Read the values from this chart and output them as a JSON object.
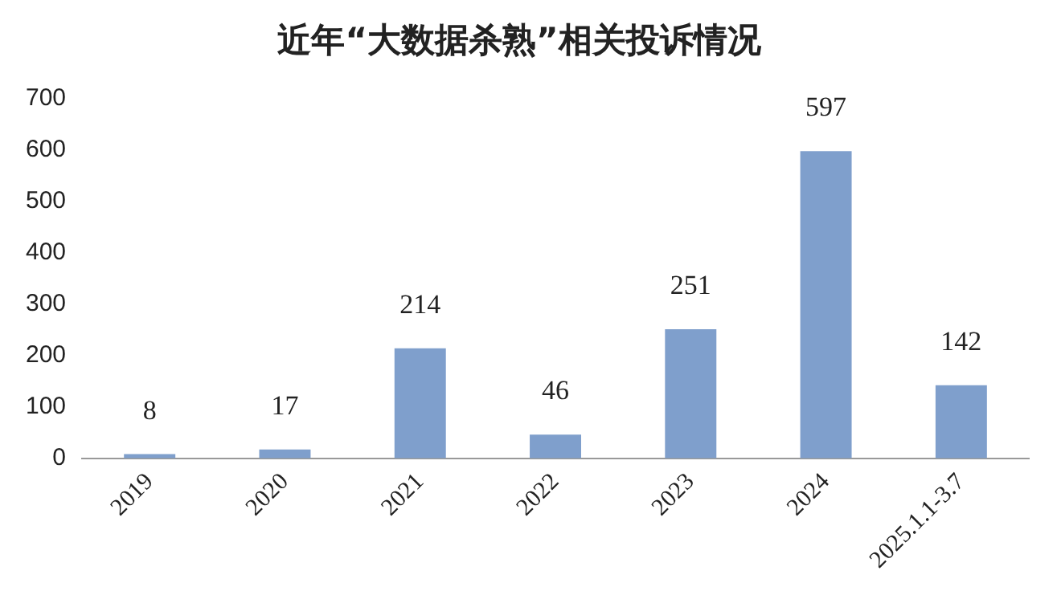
{
  "chart_data": {
    "type": "bar",
    "title": "近年“大数据杀熟”相关投诉情况",
    "categories": [
      "2019",
      "2020",
      "2021",
      "2022",
      "2023",
      "2024",
      "2025.1.1-3.7"
    ],
    "values": [
      8,
      17,
      214,
      46,
      251,
      597,
      142
    ],
    "color": "#7f9fcc",
    "ylim": [
      0,
      700
    ],
    "yticks": [
      0,
      100,
      200,
      300,
      400,
      500,
      600,
      700
    ],
    "grid": false,
    "data_labels": true
  }
}
